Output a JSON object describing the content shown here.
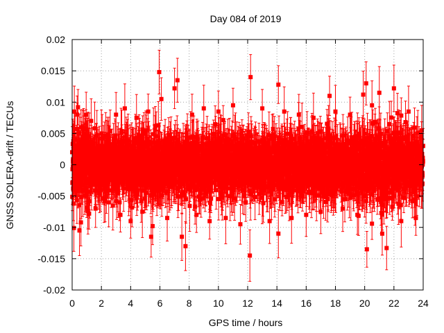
{
  "chart_data": {
    "type": "scatter",
    "title": "Day 084 of 2019",
    "xlabel": "GPS time / hours",
    "ylabel": "GNSS SOLERA-drift / TECUs",
    "xlim": [
      0,
      24
    ],
    "ylim": [
      -0.02,
      0.02
    ],
    "x_ticks": [
      0,
      2,
      4,
      6,
      8,
      10,
      12,
      14,
      16,
      18,
      20,
      22,
      24
    ],
    "x_tick_labels": [
      "0",
      "2",
      "4",
      "6",
      "8",
      "10",
      "12",
      "14",
      "16",
      "18",
      "20",
      "22",
      "24"
    ],
    "y_ticks": [
      0.02,
      0.015,
      0.01,
      0.005,
      0,
      -0.005,
      -0.01,
      -0.015,
      -0.02
    ],
    "y_tick_labels": [
      "0.02",
      "0.015",
      "0.01",
      "0.005",
      "0",
      "-0.005",
      "-0.01",
      "-0.015",
      "-0.02"
    ],
    "grid": true,
    "series": [
      {
        "name": "SOLERA drift",
        "color": "#ff0000",
        "marker": "square",
        "error_bars": true,
        "typical_error": 0.003,
        "description_note": "dense points at ~30 s spacing, mostly within ±0.008 TECU",
        "points": [
          [
            0.05,
            0.0005
          ],
          [
            0.1,
            -0.0062
          ],
          [
            0.12,
            -0.0101
          ],
          [
            0.15,
            0.0085
          ],
          [
            0.4,
            0.0092
          ],
          [
            0.5,
            -0.0105
          ],
          [
            0.6,
            -0.0092
          ],
          [
            5.4,
            -0.0115
          ],
          [
            5.5,
            -0.0098
          ],
          [
            5.95,
            0.0148
          ],
          [
            6.1,
            0.0105
          ],
          [
            7.0,
            0.0122
          ],
          [
            7.2,
            0.0135
          ],
          [
            7.5,
            -0.0115
          ],
          [
            7.75,
            -0.013
          ],
          [
            12.2,
            0.014
          ],
          [
            12.15,
            -0.0145
          ],
          [
            14.1,
            0.0128
          ],
          [
            14.1,
            -0.011
          ],
          [
            17.6,
            0.011
          ],
          [
            19.9,
            0.0112
          ],
          [
            20.1,
            0.013
          ],
          [
            20.15,
            -0.0135
          ],
          [
            20.5,
            0.0095
          ],
          [
            21.0,
            0.0115
          ],
          [
            21.2,
            -0.011
          ],
          [
            21.5,
            -0.0133
          ],
          [
            22.0,
            0.0122
          ],
          [
            23.9,
            0.0055
          ],
          [
            23.95,
            -0.003
          ],
          [
            0.2,
            0.004
          ],
          [
            0.3,
            0.002
          ],
          [
            0.35,
            -0.002
          ],
          [
            0.7,
            0.006
          ],
          [
            1.0,
            -0.005
          ],
          [
            1.3,
            0.007
          ],
          [
            1.6,
            -0.007
          ],
          [
            2.0,
            0.005
          ],
          [
            2.5,
            -0.006
          ],
          [
            3.0,
            0.008
          ],
          [
            3.3,
            -0.008
          ],
          [
            3.6,
            0.009
          ],
          [
            4.0,
            -0.009
          ],
          [
            4.4,
            0.0075
          ],
          [
            4.8,
            -0.0075
          ],
          [
            5.2,
            0.0085
          ],
          [
            6.5,
            -0.0085
          ],
          [
            8.2,
            0.008
          ],
          [
            8.5,
            -0.008
          ],
          [
            9.0,
            0.009
          ],
          [
            9.4,
            -0.009
          ],
          [
            10.0,
            0.0085
          ],
          [
            10.5,
            -0.0085
          ],
          [
            11.0,
            0.0095
          ],
          [
            11.5,
            -0.0095
          ],
          [
            13.0,
            0.009
          ],
          [
            13.5,
            -0.009
          ],
          [
            14.5,
            0.0085
          ],
          [
            15.0,
            -0.0085
          ],
          [
            15.5,
            0.008
          ],
          [
            16.0,
            -0.008
          ],
          [
            16.5,
            0.0075
          ],
          [
            17.0,
            -0.0075
          ],
          [
            18.0,
            0.0085
          ],
          [
            18.5,
            -0.007
          ],
          [
            19.0,
            0.008
          ],
          [
            19.5,
            -0.008
          ],
          [
            22.5,
            -0.009
          ],
          [
            23.0,
            0.0085
          ],
          [
            23.5,
            -0.0085
          ]
        ]
      }
    ]
  }
}
